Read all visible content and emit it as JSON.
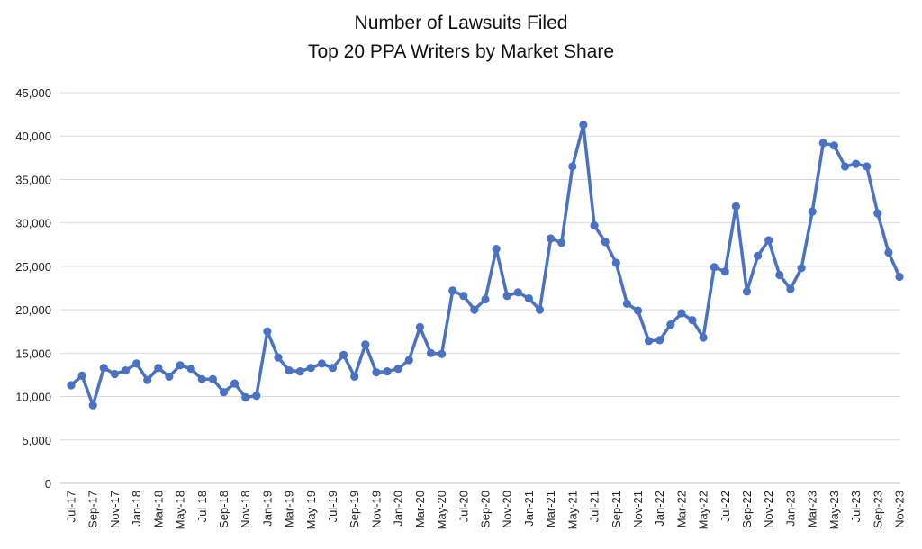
{
  "chart_data": {
    "type": "line",
    "title_lines": [
      "Number of Lawsuits Filed",
      "Top 20 PPA Writers by Market Share"
    ],
    "xlabel": "",
    "ylabel": "",
    "ylim": [
      0,
      45000
    ],
    "yticks": [
      "0",
      "5,000",
      "10,000",
      "15,000",
      "20,000",
      "25,000",
      "30,000",
      "35,000",
      "40,000",
      "45,000"
    ],
    "grid": true,
    "series_color": "#4a72c4",
    "x": [
      "Jul-17",
      "Aug-17",
      "Sep-17",
      "Oct-17",
      "Nov-17",
      "Dec-17",
      "Jan-18",
      "Feb-18",
      "Mar-18",
      "Apr-18",
      "May-18",
      "Jun-18",
      "Jul-18",
      "Aug-18",
      "Sep-18",
      "Oct-18",
      "Nov-18",
      "Dec-18",
      "Jan-19",
      "Feb-19",
      "Mar-19",
      "Apr-19",
      "May-19",
      "Jun-19",
      "Jul-19",
      "Aug-19",
      "Sep-19",
      "Oct-19",
      "Nov-19",
      "Dec-19",
      "Jan-20",
      "Feb-20",
      "Mar-20",
      "Apr-20",
      "May-20",
      "Jun-20",
      "Jul-20",
      "Aug-20",
      "Sep-20",
      "Oct-20",
      "Nov-20",
      "Dec-20",
      "Jan-21",
      "Feb-21",
      "Mar-21",
      "Apr-21",
      "May-21",
      "Jun-21",
      "Jul-21",
      "Aug-21",
      "Sep-21",
      "Oct-21",
      "Nov-21",
      "Dec-21",
      "Jan-22",
      "Feb-22",
      "Mar-22",
      "Apr-22",
      "May-22",
      "Jun-22",
      "Jul-22",
      "Aug-22",
      "Sep-22",
      "Oct-22",
      "Nov-22",
      "Dec-22",
      "Jan-23",
      "Feb-23",
      "Mar-23",
      "Apr-23",
      "May-23",
      "Jun-23",
      "Jul-23",
      "Aug-23",
      "Sep-23",
      "Oct-23",
      "Nov-23"
    ],
    "tick_labels": [
      "Jul-17",
      "Sep-17",
      "Nov-17",
      "Jan-18",
      "Mar-18",
      "May-18",
      "Jul-18",
      "Sep-18",
      "Nov-18",
      "Jan-19",
      "Mar-19",
      "May-19",
      "Jul-19",
      "Sep-19",
      "Nov-19",
      "Jan-20",
      "Mar-20",
      "May-20",
      "Jul-20",
      "Sep-20",
      "Nov-20",
      "Jan-21",
      "Mar-21",
      "May-21",
      "Jul-21",
      "Sep-21",
      "Nov-21",
      "Jan-22",
      "Mar-22",
      "May-22",
      "Jul-22",
      "Sep-22",
      "Nov-22",
      "Jan-23",
      "Mar-23",
      "May-23",
      "Jul-23",
      "Sep-23",
      "Nov-23"
    ],
    "series": [
      {
        "values": [
          11300,
          12400,
          9000,
          13300,
          12600,
          13000,
          13800,
          11900,
          13300,
          12300,
          13600,
          13200,
          12000,
          12000,
          10500,
          11500,
          9900,
          10100,
          17500,
          14500,
          13000,
          12900,
          13300,
          13800,
          13300,
          14800,
          12300,
          16000,
          12800,
          12900,
          13200,
          14200,
          18000,
          15000,
          14900,
          22200,
          21600,
          20000,
          21200,
          27000,
          21600,
          22000,
          21300,
          20000,
          28200,
          27700,
          36500,
          41300,
          29700,
          27800,
          25400,
          20700,
          19900,
          16400,
          16500,
          18300,
          19600,
          18800,
          16800,
          24900,
          24400,
          31900,
          22100,
          26200,
          28000,
          24000,
          22400,
          24800,
          31300,
          39200,
          38900,
          36500,
          36800,
          36500,
          31100,
          26600,
          23800
        ]
      }
    ]
  }
}
